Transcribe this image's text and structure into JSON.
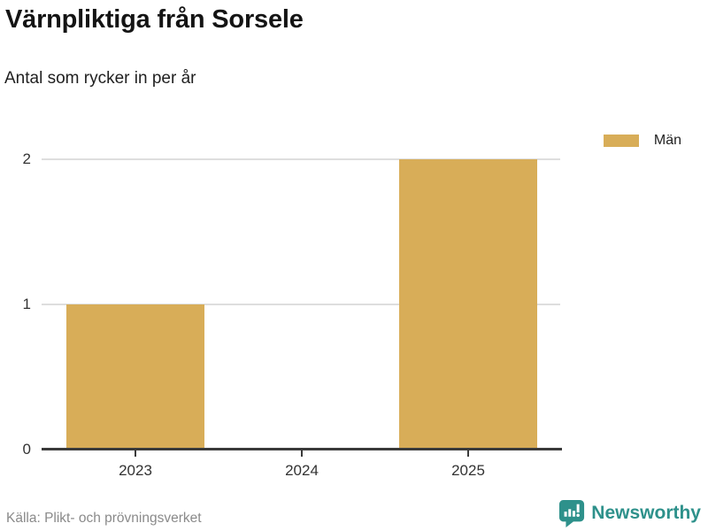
{
  "header": {
    "title": "Värnpliktiga från Sorsele",
    "subtitle": "Antal som rycker in per år"
  },
  "legend": {
    "items": [
      {
        "label": "Män",
        "color": "#d8ad58"
      }
    ]
  },
  "chart_data": {
    "type": "bar",
    "title": "Värnpliktiga från Sorsele",
    "subtitle": "Antal som rycker in per år",
    "categories": [
      "2023",
      "2024",
      "2025"
    ],
    "series": [
      {
        "name": "Män",
        "color": "#d8ad58",
        "values": [
          1,
          0,
          2
        ]
      }
    ],
    "xlabel": "",
    "ylabel": "",
    "ylim": [
      0,
      2
    ],
    "yticks": [
      "0",
      "1",
      "2"
    ],
    "grid": "horizontal",
    "legend_position": "top-right"
  },
  "footer": {
    "source": "Källa: Plikt- och prövningsverket",
    "brand": "Newsworthy"
  },
  "icons": {
    "brand_logo": "bar-chart-speech-bubble-icon"
  },
  "colors": {
    "bar": "#d8ad58",
    "axis": "#3a3a3a",
    "gridline": "#dedede",
    "tick_text": "#333333",
    "title_text": "#141414",
    "muted_text": "#8a8a8a",
    "brand_teal": "#2e918b",
    "background": "#ffffff"
  }
}
